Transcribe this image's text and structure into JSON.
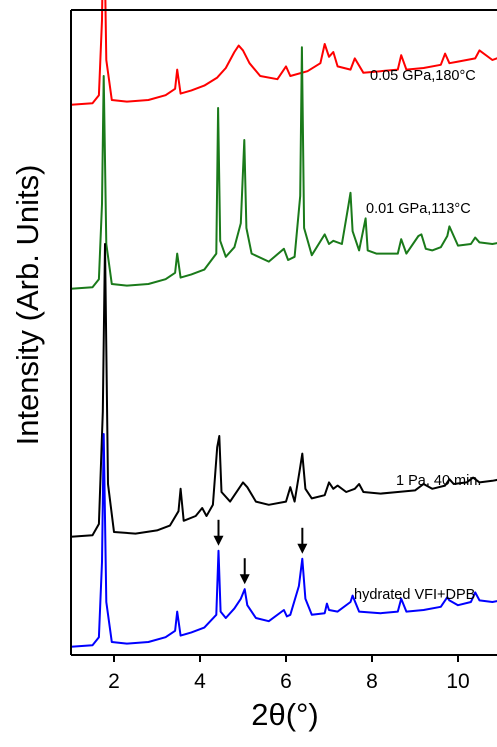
{
  "chart_data": {
    "type": "line",
    "xlabel": "2θ(°)",
    "ylabel": "Intensity (Arb. Units)",
    "xlim": [
      1,
      11
    ],
    "xticks": [
      2,
      4,
      6,
      8,
      10
    ],
    "xtick_labels": [
      "2",
      "4",
      "6",
      "8",
      "10"
    ],
    "y_ticks": false,
    "grid": false,
    "series": [
      {
        "name": "0.05 GPa,180°C",
        "color": "#ff0000",
        "x": [
          1,
          1.5,
          1.65,
          1.72,
          1.76,
          1.82,
          1.95,
          2.3,
          2.8,
          3.2,
          3.42,
          3.47,
          3.55,
          3.8,
          4.1,
          4.4,
          4.6,
          4.8,
          4.9,
          5.0,
          5.15,
          5.4,
          5.8,
          6.0,
          6.1,
          6.5,
          6.8,
          6.9,
          7.0,
          7.1,
          7.2,
          7.5,
          7.6,
          7.8,
          8.2,
          8.6,
          8.68,
          8.8,
          9.2,
          9.6,
          9.7,
          9.8,
          10.0,
          10.4,
          10.5,
          10.8,
          11
        ],
        "y": [
          0.2,
          0.3,
          0.8,
          5.5,
          13.5,
          3.0,
          0.5,
          0.4,
          0.5,
          0.8,
          1.2,
          2.4,
          0.9,
          1.1,
          1.4,
          1.9,
          2.5,
          3.5,
          3.9,
          3.6,
          2.8,
          2.0,
          1.8,
          2.6,
          2.0,
          2.3,
          2.8,
          4.0,
          3.2,
          3.5,
          2.6,
          2.4,
          3.1,
          2.2,
          2.3,
          2.4,
          3.3,
          2.4,
          2.5,
          2.7,
          3.4,
          2.8,
          2.9,
          3.1,
          3.6,
          3.0,
          3.2
        ]
      },
      {
        "name": "0.01 GPa,113°C",
        "color": "#1a7a1a",
        "x": [
          1,
          1.5,
          1.65,
          1.72,
          1.76,
          1.82,
          1.95,
          2.3,
          2.8,
          3.2,
          3.42,
          3.47,
          3.55,
          3.8,
          4.1,
          4.38,
          4.42,
          4.47,
          4.6,
          4.8,
          4.95,
          5.03,
          5.08,
          5.2,
          5.6,
          5.95,
          6.05,
          6.2,
          6.33,
          6.37,
          6.42,
          6.6,
          6.9,
          7.0,
          7.1,
          7.3,
          7.45,
          7.5,
          7.55,
          7.7,
          7.85,
          7.9,
          8.1,
          8.6,
          8.68,
          8.8,
          9.08,
          9.15,
          9.25,
          9.4,
          9.6,
          9.75,
          9.8,
          10.0,
          10.3,
          10.4,
          10.5,
          10.8,
          11
        ],
        "y": [
          0.2,
          0.3,
          0.8,
          5.5,
          13.5,
          3.0,
          0.5,
          0.4,
          0.5,
          0.8,
          1.2,
          2.4,
          0.9,
          1.1,
          1.4,
          2.4,
          11.5,
          3.2,
          2.2,
          2.8,
          4.3,
          9.5,
          4.0,
          2.4,
          1.9,
          2.7,
          2.0,
          2.2,
          6.0,
          15.3,
          4.0,
          2.3,
          3.6,
          3.0,
          3.2,
          3.0,
          5.4,
          6.2,
          3.8,
          2.6,
          4.6,
          2.6,
          2.4,
          2.4,
          3.3,
          2.4,
          3.5,
          3.6,
          2.7,
          2.6,
          2.8,
          3.5,
          4.1,
          2.9,
          3.0,
          3.4,
          3.1,
          3.0,
          3.1
        ]
      },
      {
        "name": "1 Pa, 40 min.",
        "color": "#000000",
        "x": [
          1,
          1.5,
          1.65,
          1.74,
          1.79,
          1.86,
          2.0,
          2.5,
          3.0,
          3.3,
          3.5,
          3.55,
          3.62,
          3.9,
          4.05,
          4.15,
          4.3,
          4.4,
          4.45,
          4.5,
          4.7,
          4.9,
          5.0,
          5.1,
          5.3,
          5.6,
          6.0,
          6.1,
          6.2,
          6.32,
          6.38,
          6.45,
          6.6,
          6.9,
          7.0,
          7.1,
          7.2,
          7.4,
          7.6,
          7.7,
          7.8,
          8.2,
          8.6,
          9.0,
          9.2,
          9.4,
          9.7,
          9.8,
          9.9,
          10.2,
          10.35,
          10.5,
          10.8,
          11
        ],
        "y": [
          0.2,
          0.3,
          1.0,
          8.0,
          18.5,
          3.5,
          0.5,
          0.4,
          0.6,
          0.9,
          1.8,
          3.2,
          1.2,
          1.5,
          2.0,
          1.5,
          2.2,
          5.8,
          6.5,
          3.0,
          2.4,
          3.2,
          3.6,
          3.3,
          2.4,
          2.2,
          2.4,
          3.3,
          2.4,
          4.4,
          5.4,
          3.2,
          2.6,
          2.8,
          3.6,
          3.2,
          3.4,
          3.0,
          3.2,
          3.5,
          3.0,
          2.9,
          3.0,
          3.1,
          3.5,
          3.2,
          3.4,
          3.8,
          3.5,
          3.6,
          3.9,
          3.6,
          3.7,
          3.8
        ]
      },
      {
        "name": "hydrated VFI+DPB",
        "color": "#0000ff",
        "x": [
          1,
          1.5,
          1.65,
          1.72,
          1.76,
          1.82,
          1.95,
          2.3,
          2.8,
          3.2,
          3.42,
          3.47,
          3.55,
          3.8,
          4.1,
          4.38,
          4.43,
          4.48,
          4.6,
          4.8,
          4.95,
          5.04,
          5.1,
          5.3,
          5.6,
          5.95,
          6.02,
          6.1,
          6.3,
          6.38,
          6.45,
          6.6,
          6.9,
          6.95,
          7.0,
          7.2,
          7.5,
          7.55,
          7.7,
          8.2,
          8.6,
          8.68,
          8.8,
          9.2,
          9.6,
          9.75,
          9.8,
          10.0,
          10.3,
          10.4,
          10.5,
          10.8,
          11
        ],
        "y": [
          0.2,
          0.3,
          0.8,
          5.5,
          13.5,
          3.0,
          0.5,
          0.4,
          0.5,
          0.8,
          1.2,
          2.4,
          0.9,
          1.1,
          1.4,
          2.2,
          6.2,
          2.4,
          2.0,
          2.6,
          3.2,
          3.8,
          2.8,
          2.0,
          1.8,
          2.5,
          2.1,
          2.2,
          4.0,
          5.7,
          3.2,
          2.2,
          2.3,
          2.9,
          2.5,
          2.4,
          3.0,
          3.4,
          2.4,
          2.3,
          2.4,
          3.2,
          2.4,
          2.5,
          2.7,
          3.3,
          3.1,
          2.8,
          3.0,
          3.6,
          3.1,
          3.0,
          3.1
        ]
      }
    ],
    "arrows_at_x": [
      4.43,
      5.04,
      6.38
    ]
  }
}
